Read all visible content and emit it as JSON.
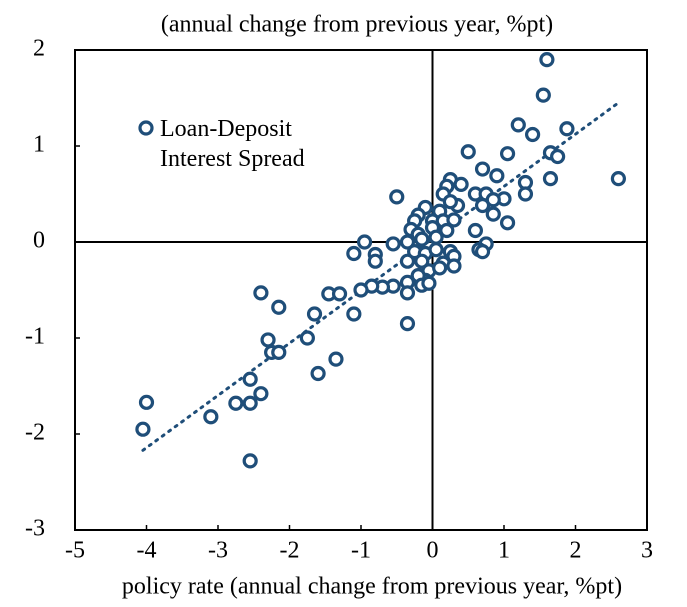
{
  "chart_data": {
    "type": "scatter",
    "title": "(annual change from previous year, %pt)",
    "x_label": "policy rate (annual change from previous year, %pt)",
    "xlim": [
      -5,
      3
    ],
    "xticks": [
      -5,
      -4,
      -3,
      -2,
      -1,
      0,
      1,
      2,
      3
    ],
    "ylim": [
      -3,
      2
    ],
    "yticks": [
      -3,
      -2,
      -1,
      0,
      1,
      2
    ],
    "series": [
      {
        "name": "Loan-Deposit Interest Spread",
        "color": "#1f4e79",
        "x": [
          1.6,
          1.55,
          1.2,
          1.4,
          1.88,
          0.5,
          1.05,
          1.65,
          1.75,
          0.7,
          0.9,
          1.3,
          1.65,
          2.6,
          0.25,
          0.4,
          0.2,
          0.15,
          0.6,
          0.75,
          1.0,
          1.3,
          0.85,
          0.7,
          0.35,
          0.25,
          -0.1,
          0.1,
          -0.5,
          0.85,
          1.05,
          0.0,
          -0.2,
          -0.25,
          0.15,
          0.3,
          -0.3,
          -0.2,
          0.0,
          0.2,
          0.6,
          -0.15,
          0.05,
          -0.35,
          -0.55,
          -0.95,
          0.75,
          0.65,
          0.7,
          -0.8,
          -0.8,
          -1.1,
          -0.25,
          -0.1,
          0.05,
          0.25,
          0.3,
          -0.35,
          0.15,
          0.3,
          -0.15,
          -0.05,
          -0.1,
          -0.2,
          0.1,
          -0.35,
          -0.55,
          -0.7,
          -0.85,
          -0.35,
          -0.15,
          -0.05,
          -1.0,
          -1.45,
          -1.3,
          -1.1,
          -2.4,
          -2.15,
          -1.65,
          -0.35,
          -1.75,
          -2.3,
          -2.25,
          -2.15,
          -1.35,
          -1.6,
          -2.55,
          -2.4,
          -2.75,
          -2.55,
          -4.0,
          -3.1,
          -4.05,
          -2.55
        ],
        "values": [
          1.9,
          1.53,
          1.22,
          1.12,
          1.18,
          0.94,
          0.92,
          0.93,
          0.89,
          0.76,
          0.69,
          0.62,
          0.66,
          0.66,
          0.65,
          0.6,
          0.58,
          0.5,
          0.5,
          0.5,
          0.45,
          0.5,
          0.44,
          0.38,
          0.38,
          0.42,
          0.36,
          0.32,
          0.47,
          0.29,
          0.2,
          0.22,
          0.28,
          0.22,
          0.22,
          0.23,
          0.13,
          0.08,
          0.15,
          0.12,
          0.12,
          0.03,
          0.05,
          0.0,
          -0.02,
          0.0,
          -0.02,
          -0.08,
          -0.1,
          -0.13,
          -0.2,
          -0.12,
          -0.1,
          -0.12,
          -0.08,
          -0.1,
          -0.15,
          -0.2,
          -0.22,
          -0.25,
          -0.2,
          -0.3,
          -0.4,
          -0.35,
          -0.27,
          -0.42,
          -0.46,
          -0.47,
          -0.46,
          -0.53,
          -0.45,
          -0.43,
          -0.5,
          -0.54,
          -0.54,
          -0.75,
          -0.53,
          -0.68,
          -0.75,
          -0.85,
          -1.0,
          -1.02,
          -1.15,
          -1.15,
          -1.22,
          -1.37,
          -1.43,
          -1.58,
          -1.68,
          -1.68,
          -1.67,
          -1.82,
          -1.95,
          -2.28
        ]
      }
    ],
    "trendline": {
      "x": [
        -4.05,
        2.6
      ],
      "y": [
        -2.17,
        1.45
      ]
    }
  }
}
